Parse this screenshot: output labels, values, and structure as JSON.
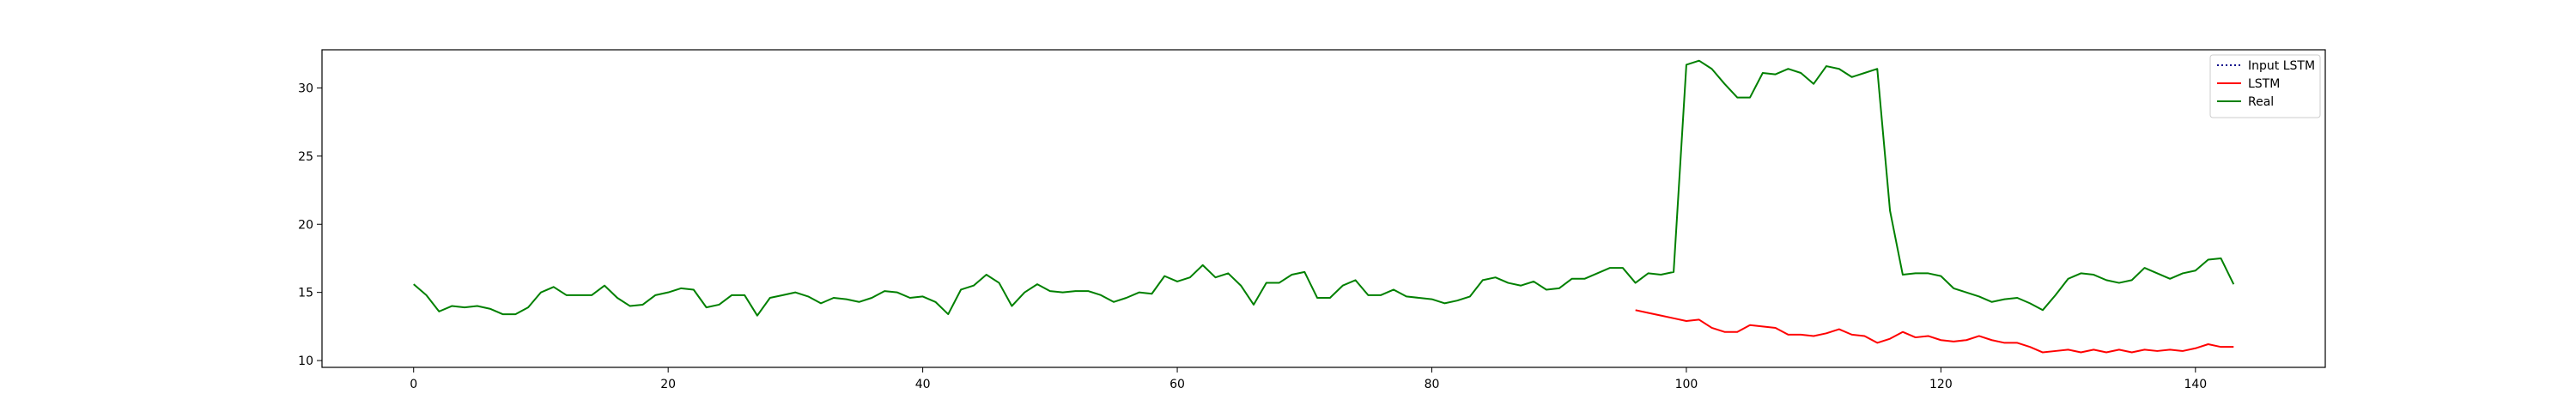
{
  "chart_data": {
    "type": "line",
    "title": "",
    "xlabel": "",
    "ylabel": "",
    "xlim": [
      -7.2,
      150.2
    ],
    "ylim": [
      9.5,
      32.8
    ],
    "xticks": [
      0,
      20,
      40,
      60,
      80,
      100,
      120,
      140
    ],
    "yticks": [
      10,
      15,
      20,
      25,
      30
    ],
    "grid": false,
    "legend": {
      "position": "top-right"
    },
    "series": [
      {
        "name": "Input LSTM",
        "style": "dotted",
        "color": "#00008b",
        "x": [],
        "y": []
      },
      {
        "name": "LSTM",
        "style": "solid",
        "color": "#ff0000",
        "x_start": 96,
        "y": [
          13.7,
          13.5,
          13.3,
          13.1,
          12.9,
          13.0,
          12.4,
          12.1,
          12.1,
          12.6,
          12.5,
          12.4,
          11.9,
          11.9,
          11.8,
          12.0,
          12.3,
          11.9,
          11.8,
          11.3,
          11.6,
          12.1,
          11.7,
          11.8,
          11.5,
          11.4,
          11.5,
          11.8,
          11.5,
          11.3,
          11.3,
          11.0,
          10.6,
          10.7,
          10.8,
          10.6,
          10.8,
          10.6,
          10.8,
          10.6,
          10.8,
          10.7,
          10.8,
          10.7,
          10.9,
          11.2,
          11.0,
          11.0
        ]
      },
      {
        "name": "Real",
        "style": "solid",
        "color": "#008000",
        "x_start": 0,
        "y": [
          15.6,
          14.8,
          13.6,
          14.0,
          13.9,
          14.0,
          13.8,
          13.4,
          13.4,
          13.9,
          15.0,
          15.4,
          14.8,
          14.8,
          14.8,
          15.5,
          14.6,
          14.0,
          14.1,
          14.8,
          15.0,
          15.3,
          15.2,
          13.9,
          14.1,
          14.8,
          14.8,
          13.3,
          14.6,
          14.8,
          15.0,
          14.7,
          14.2,
          14.6,
          14.5,
          14.3,
          14.6,
          15.1,
          15.0,
          14.6,
          14.7,
          14.3,
          13.4,
          15.2,
          15.5,
          16.3,
          15.7,
          14.0,
          15.0,
          15.6,
          15.1,
          15.0,
          15.1,
          15.1,
          14.8,
          14.3,
          14.6,
          15.0,
          14.9,
          16.2,
          15.8,
          16.1,
          17.0,
          16.1,
          16.4,
          15.5,
          14.1,
          15.7,
          15.7,
          16.3,
          16.5,
          14.6,
          14.6,
          15.5,
          15.9,
          14.8,
          14.8,
          15.2,
          14.7,
          14.6,
          14.5,
          14.2,
          14.4,
          14.7,
          15.9,
          16.1,
          15.7,
          15.5,
          15.8,
          15.2,
          15.3,
          16.0,
          16.0,
          16.4,
          16.8,
          16.8,
          15.7,
          16.4,
          16.3,
          16.5,
          31.7,
          32.0,
          31.4,
          30.3,
          29.3,
          29.3,
          31.1,
          31.0,
          31.4,
          31.1,
          30.3,
          31.6,
          31.4,
          30.8,
          31.1,
          31.4,
          21.0,
          16.3,
          16.4,
          16.4,
          16.2,
          15.3,
          15.0,
          14.7,
          14.3,
          14.5,
          14.6,
          14.2,
          13.7,
          14.8,
          16.0,
          16.4,
          16.3,
          15.9,
          15.7,
          15.9,
          16.8,
          16.4,
          16.0,
          16.4,
          16.6,
          17.4,
          17.5,
          15.6
        ]
      }
    ]
  }
}
